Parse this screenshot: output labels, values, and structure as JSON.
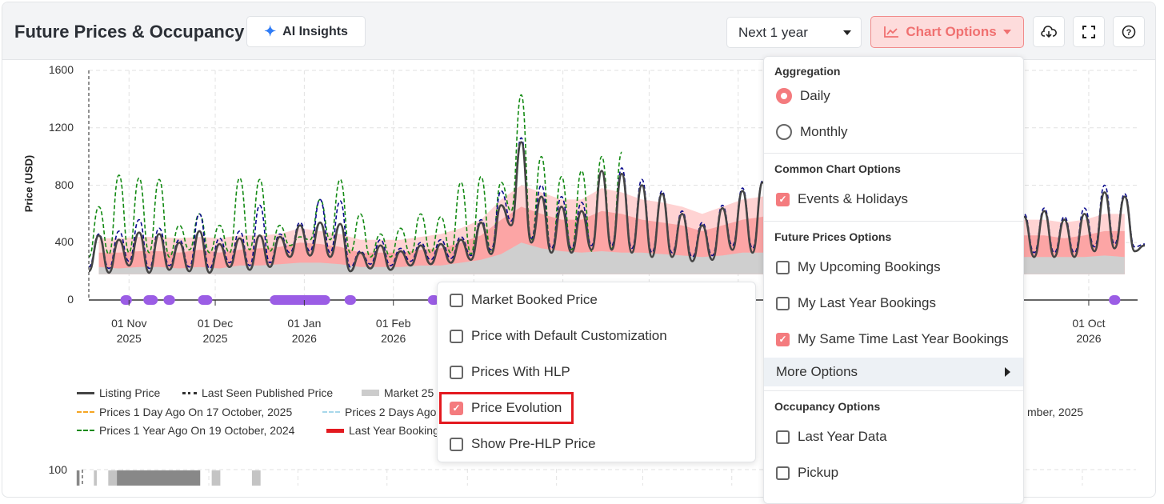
{
  "header": {
    "title": "Future Prices & Occupancy",
    "ai_insights_label": "AI Insights",
    "period_select": "Next 1 year",
    "chart_options_label": "Chart Options",
    "accent_color": "#f07070"
  },
  "legend": {
    "listing_price": "Listing Price",
    "last_seen": "Last Seen Published Price",
    "market": "Market 25",
    "prices_1_day": "Prices 1 Day Ago On 17 October, 2025",
    "prices_2_days": "Prices 2 Days Ago",
    "right_fragment": "mber, 2025",
    "prices_1_year": "Prices 1 Year Ago On 19 October, 2024",
    "last_year_bookings": "Last Year Bookings"
  },
  "chart_options_menu": {
    "aggregation_title": "Aggregation",
    "daily": "Daily",
    "daily_selected": true,
    "monthly": "Monthly",
    "common_title": "Common Chart Options",
    "events_holidays": "Events & Holidays",
    "events_holidays_checked": true,
    "future_title": "Future Prices Options",
    "my_upcoming": "My Upcoming Bookings",
    "my_last_year": "My Last Year Bookings",
    "my_same_time": "My Same Time Last Year Bookings",
    "my_same_time_checked": true,
    "more_options": "More Options",
    "occupancy_title": "Occupancy Options",
    "last_year_data": "Last Year Data",
    "pickup": "Pickup"
  },
  "more_options_menu": {
    "market_booked": "Market Booked Price",
    "default_customization": "Price with Default Customization",
    "prices_hlp": "Prices With HLP",
    "price_evolution": "Price Evolution",
    "price_evolution_checked": true,
    "pre_hlp": "Show Pre-HLP Price"
  },
  "chart_data": [
    {
      "type": "line",
      "ylabel": "Price (USD)",
      "ylim": [
        0,
        1600
      ],
      "yticks": [
        "0",
        "400",
        "800",
        "1200",
        "1600"
      ],
      "x_start": "2025-10-18",
      "x_end": "2026-10-18",
      "xticks": [
        {
          "date": "2025-11-01",
          "label": "01 Nov",
          "year": "2025"
        },
        {
          "date": "2025-12-01",
          "label": "01 Dec",
          "year": "2025"
        },
        {
          "date": "2026-01-01",
          "label": "01 Jan",
          "year": "2026"
        },
        {
          "date": "2026-02-01",
          "label": "01 Feb",
          "year": "2026"
        },
        {
          "date": "2026-10-01",
          "label": "01 Oct",
          "year": "2026"
        }
      ],
      "grid": true,
      "resolution": "weekly low/high",
      "series": {
        "listing_price": {
          "color": "#444444",
          "high": [
            450,
            420,
            470,
            460,
            400,
            480,
            390,
            430,
            450,
            440,
            520,
            540,
            530,
            330,
            380,
            340,
            380,
            390,
            420,
            540,
            660,
            1100,
            720,
            650,
            620,
            900,
            880,
            800,
            740,
            600,
            520,
            640,
            760,
            820,
            1100,
            760,
            600,
            580,
            700,
            640,
            700,
            560,
            480,
            600,
            560,
            540,
            580,
            620,
            560,
            600,
            750,
            720,
            380
          ],
          "low": [
            200,
            190,
            240,
            190,
            210,
            200,
            190,
            230,
            210,
            230,
            300,
            310,
            300,
            200,
            220,
            210,
            240,
            250,
            260,
            280,
            320,
            520,
            400,
            330,
            330,
            350,
            350,
            330,
            300,
            300,
            270,
            280,
            350,
            330,
            520,
            300,
            280,
            280,
            320,
            300,
            330,
            300,
            280,
            280,
            300,
            320,
            300,
            300,
            300,
            300,
            340,
            360,
            340
          ]
        },
        "navy_dashed": {
          "color": "#0a0a8c",
          "high": [
            460,
            480,
            560,
            500,
            420,
            600,
            430,
            480,
            660,
            460,
            540,
            700,
            690,
            340,
            420,
            360,
            400,
            420,
            440,
            560,
            760,
            1130,
            800,
            720,
            680,
            900,
            920,
            840,
            760,
            620,
            540,
            660,
            780,
            830,
            1120,
            780,
            620,
            600,
            720,
            660,
            720,
            580,
            500,
            640,
            580,
            560,
            600,
            640,
            580,
            640,
            800,
            740,
            390
          ],
          "low": [
            230,
            220,
            270,
            220,
            240,
            230,
            220,
            260,
            240,
            260,
            330,
            340,
            330,
            230,
            250,
            240,
            270,
            280,
            290,
            310,
            350,
            550,
            430,
            360,
            360,
            380,
            380,
            360,
            330,
            330,
            300,
            310,
            380,
            360,
            550,
            330,
            310,
            310,
            350,
            330,
            360,
            330,
            310,
            310,
            330,
            350,
            330,
            330,
            330,
            330,
            370,
            390,
            370
          ]
        },
        "prices_1_year_ago": {
          "color": "#138a13",
          "high": [
            650,
            870,
            850,
            840,
            520,
            600,
            520,
            850,
            840,
            520,
            440,
            700,
            840,
            600,
            460,
            500,
            600,
            580,
            820,
            860,
            820,
            1430,
            1000,
            860,
            900,
            1000,
            1030
          ],
          "low": [
            300,
            320,
            330,
            330,
            300,
            350,
            330,
            330,
            350,
            340,
            380,
            420,
            420,
            330,
            300,
            300,
            320,
            330,
            330,
            320,
            330,
            620,
            420,
            330,
            350,
            340,
            360
          ]
        }
      },
      "market_bands": {
        "floor": 180,
        "p25": [
          230,
          220,
          230,
          230,
          220,
          230,
          220,
          240,
          240,
          250,
          260,
          260,
          250,
          230,
          230,
          230,
          240,
          240,
          260,
          280,
          320,
          400,
          360,
          340,
          330,
          340,
          330,
          330,
          320,
          310,
          300,
          310,
          330,
          330,
          350,
          330,
          320,
          310,
          320,
          310,
          320,
          310,
          300,
          300,
          300,
          300,
          300,
          300,
          300,
          300,
          310,
          300
        ],
        "p50": [
          330,
          330,
          340,
          340,
          330,
          350,
          330,
          350,
          360,
          370,
          400,
          390,
          370,
          330,
          330,
          330,
          350,
          360,
          400,
          450,
          560,
          650,
          600,
          560,
          560,
          620,
          600,
          560,
          540,
          520,
          480,
          520,
          560,
          580,
          700,
          560,
          500,
          480,
          520,
          500,
          510,
          470,
          450,
          450,
          440,
          430,
          450,
          450,
          430,
          450,
          480,
          480
        ],
        "p75": [
          430,
          430,
          440,
          440,
          430,
          440,
          430,
          450,
          450,
          460,
          500,
          480,
          460,
          420,
          420,
          420,
          440,
          460,
          500,
          560,
          700,
          800,
          750,
          700,
          700,
          780,
          750,
          700,
          680,
          650,
          600,
          650,
          700,
          720,
          880,
          700,
          620,
          600,
          650,
          620,
          640,
          580,
          560,
          560,
          550,
          540,
          560,
          560,
          540,
          560,
          600,
          600
        ],
        "colors": {
          "p25": "#cfcfcf",
          "p50": "#fca5a5",
          "p75": "#ffd3d3"
        }
      },
      "events": {
        "color": "#9b5de5",
        "ranges": [
          [
            "2025-10-29",
            "2025-11-02"
          ],
          [
            "2025-11-06",
            "2025-11-11"
          ],
          [
            "2025-11-13",
            "2025-11-17"
          ],
          [
            "2025-11-25",
            "2025-11-30"
          ],
          [
            "2025-12-20",
            "2026-01-10"
          ],
          [
            "2026-01-15",
            "2026-01-19"
          ],
          [
            "2026-02-13",
            "2026-02-17"
          ],
          [
            "2026-10-08",
            "2026-10-12"
          ]
        ]
      }
    },
    {
      "type": "bar",
      "yticks": [
        "100"
      ],
      "bars": [
        {
          "from": "2025-10-16",
          "to": "2025-10-17",
          "shade": "#888888"
        },
        {
          "from": "2025-10-22",
          "to": "2025-10-23",
          "shade": "#c4c4c4"
        },
        {
          "from": "2025-10-27",
          "to": "2025-10-30",
          "shade": "#c4c4c4"
        },
        {
          "from": "2025-10-30",
          "to": "2025-11-28",
          "shade": "#888888"
        },
        {
          "from": "2025-12-02",
          "to": "2025-12-05",
          "shade": "#c4c4c4"
        },
        {
          "from": "2025-12-16",
          "to": "2025-12-19",
          "shade": "#c4c4c4"
        }
      ]
    }
  ]
}
